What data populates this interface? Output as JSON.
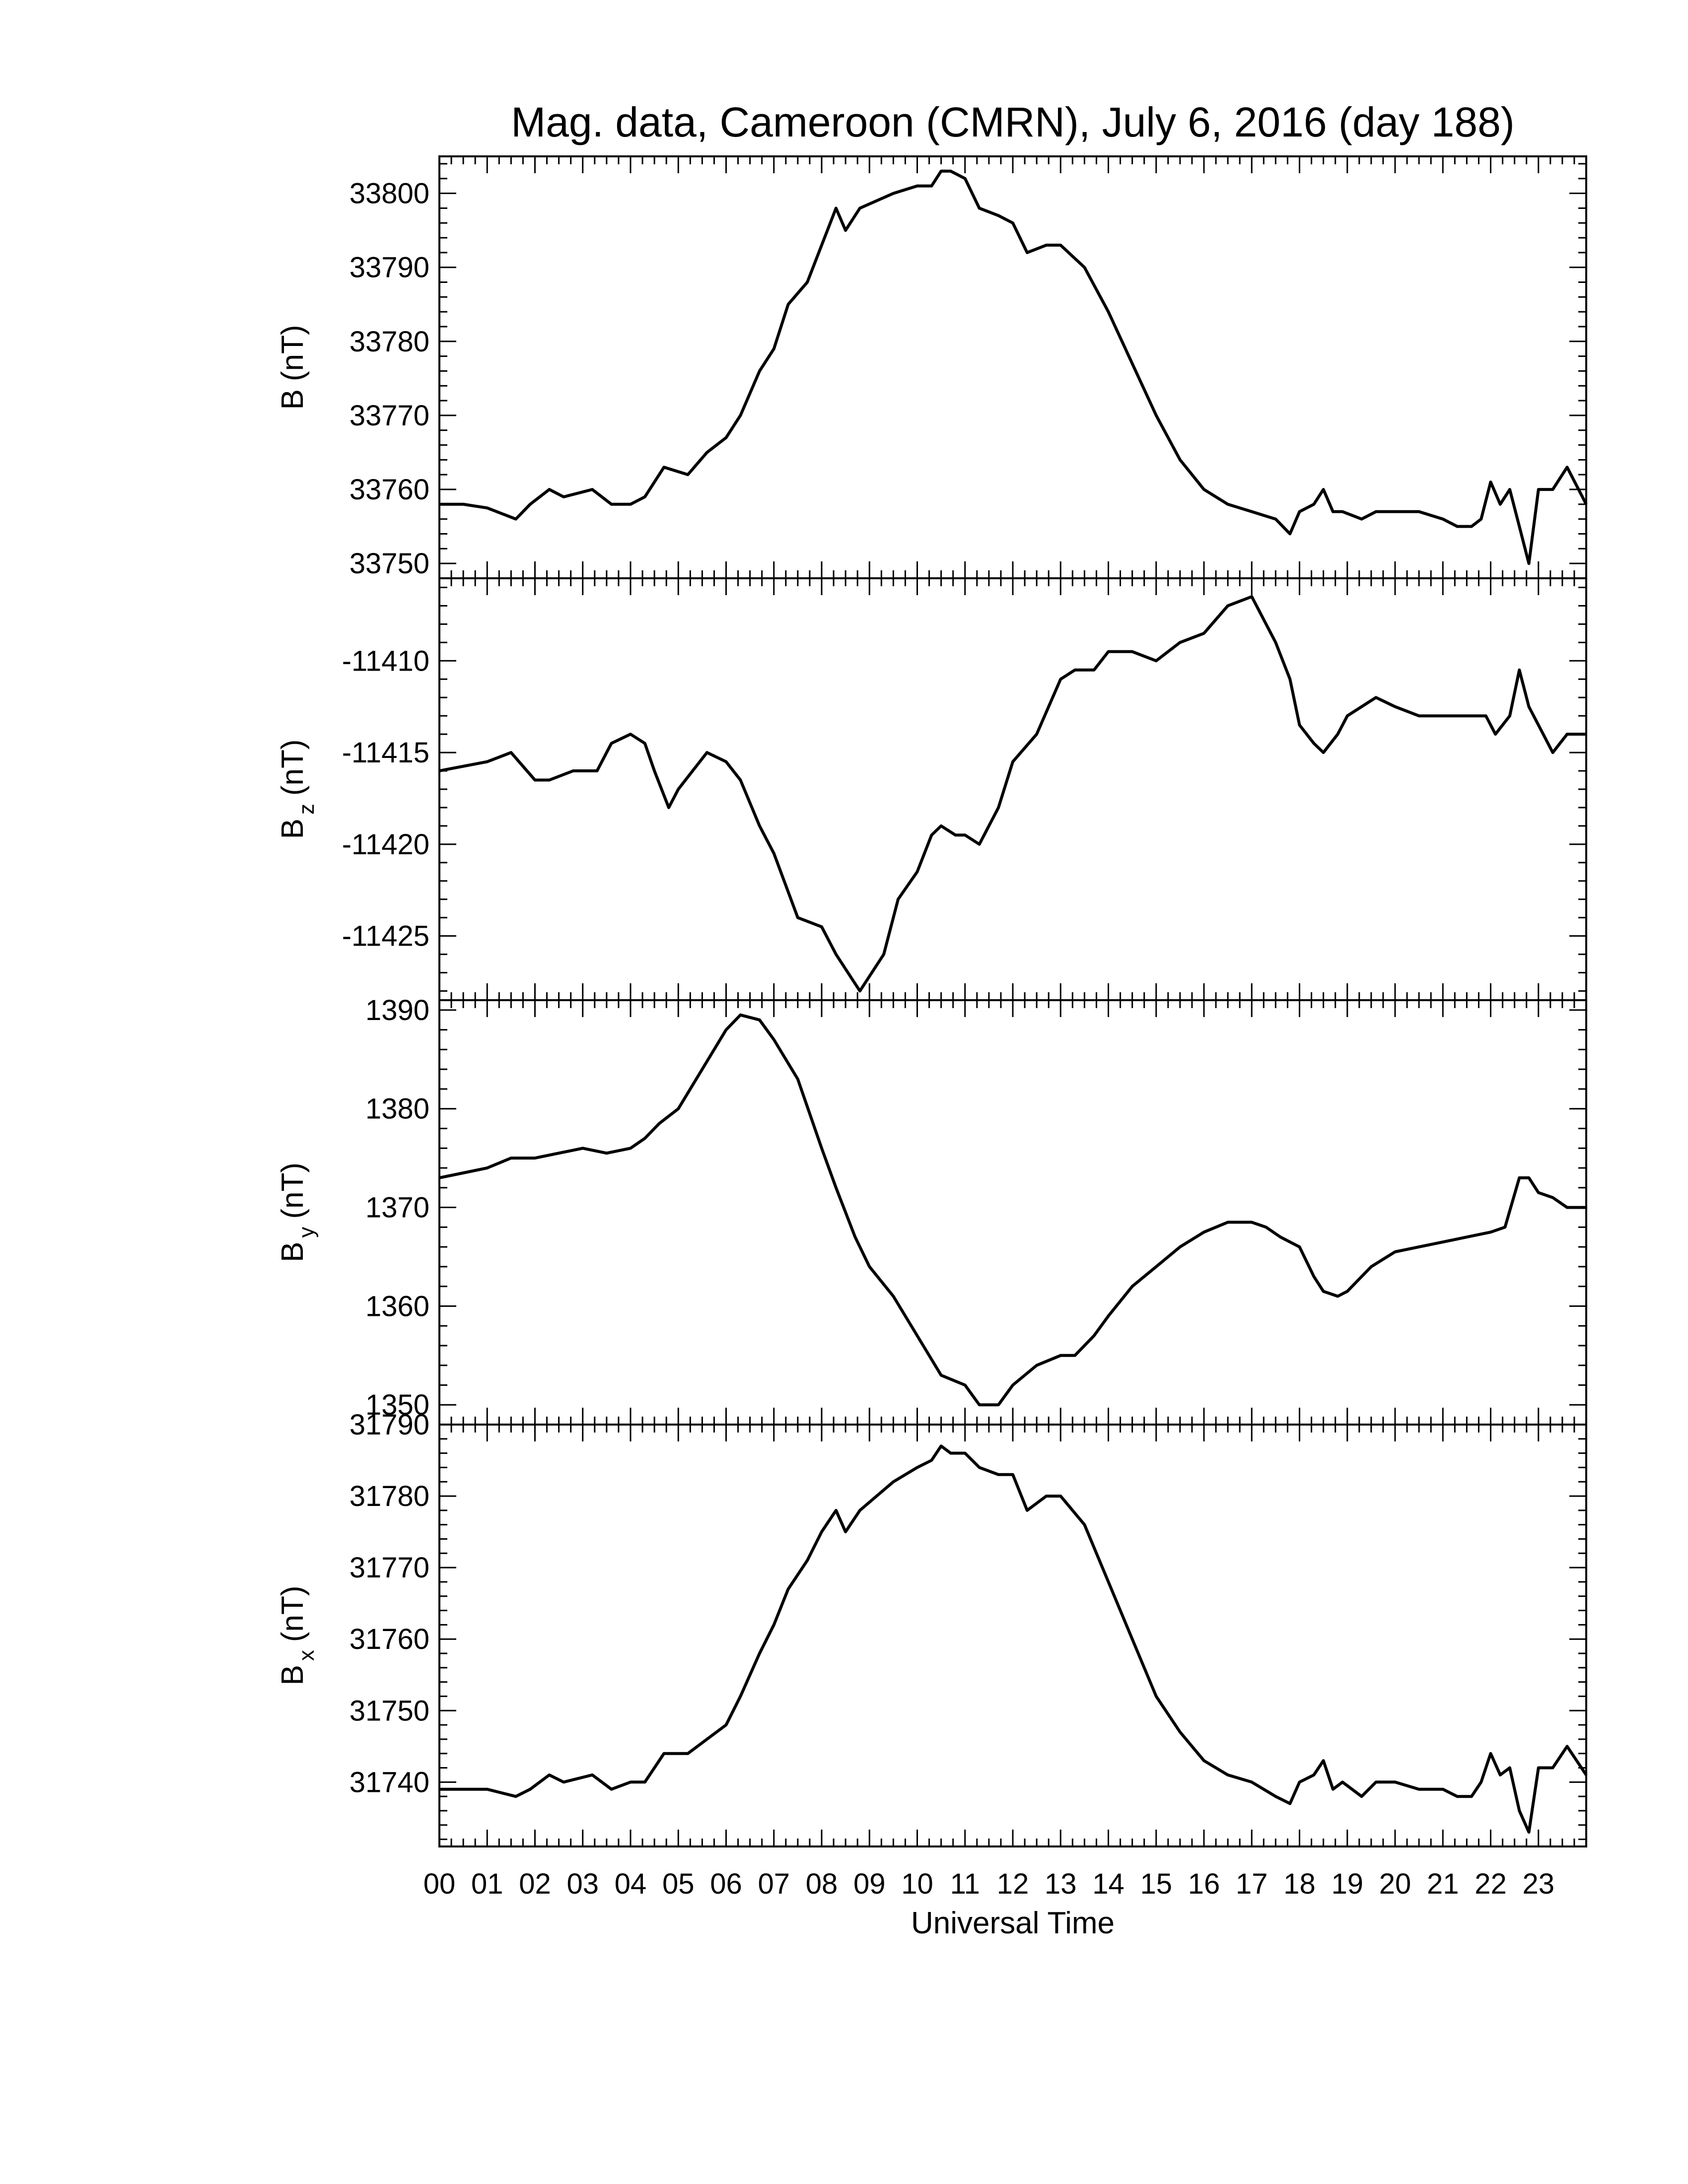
{
  "chart_data": {
    "type": "line",
    "title": "Mag. data, Cameroon (CMRN), July 6, 2016 (day 188)",
    "xlabel": "Universal Time",
    "xlim": [
      0,
      24
    ],
    "x_ticks": [
      "00",
      "01",
      "02",
      "03",
      "04",
      "05",
      "06",
      "07",
      "08",
      "09",
      "10",
      "11",
      "12",
      "13",
      "14",
      "15",
      "16",
      "17",
      "18",
      "19",
      "20",
      "21",
      "22",
      "23"
    ],
    "panels": [
      {
        "ylabel_main": "B",
        "ylabel_sub": "",
        "ylabel_unit": "(nT)",
        "ylim": [
          33748,
          33805
        ],
        "yticks": [
          33750,
          33760,
          33770,
          33780,
          33790,
          33800
        ],
        "x": [
          0,
          0.5,
          1.0,
          1.6,
          1.9,
          2.3,
          2.6,
          3.2,
          3.6,
          4.0,
          4.3,
          4.7,
          5.2,
          5.6,
          6.0,
          6.3,
          6.7,
          7.0,
          7.3,
          7.7,
          8.0,
          8.3,
          8.5,
          8.8,
          9.5,
          10.0,
          10.3,
          10.5,
          10.7,
          11.0,
          11.3,
          11.7,
          12.0,
          12.3,
          12.7,
          13.0,
          13.5,
          14.0,
          14.5,
          15.0,
          15.5,
          16.0,
          16.5,
          17.0,
          17.5,
          17.8,
          18.0,
          18.3,
          18.5,
          18.7,
          18.9,
          19.3,
          19.6,
          20.0,
          20.5,
          21.0,
          21.3,
          21.6,
          21.8,
          22.0,
          22.2,
          22.4,
          22.6,
          22.8,
          23.0,
          23.3,
          23.6,
          24.0
        ],
        "y": [
          33758,
          33758,
          33757.5,
          33756,
          33758,
          33760,
          33759,
          33760,
          33758,
          33758,
          33759,
          33763,
          33762,
          33765,
          33767,
          33770,
          33776,
          33779,
          33785,
          33788,
          33793,
          33798,
          33795,
          33798,
          33800,
          33801,
          33801,
          33803,
          33803,
          33802,
          33798,
          33797,
          33796,
          33792,
          33793,
          33793,
          33790,
          33784,
          33777,
          33770,
          33764,
          33760,
          33758,
          33757,
          33756,
          33754,
          33757,
          33758,
          33760,
          33757,
          33757,
          33756,
          33757,
          33757,
          33757,
          33756,
          33755,
          33755,
          33756,
          33761,
          33758,
          33760,
          33755,
          33750,
          33760,
          33760,
          33763,
          33758
        ]
      },
      {
        "ylabel_main": "B",
        "ylabel_sub": "z",
        "ylabel_unit": "(nT)",
        "ylim": [
          -11428.5,
          -11405.5
        ],
        "yticks": [
          -11425,
          -11420,
          -11415,
          -11410
        ],
        "x": [
          0,
          1.0,
          1.5,
          2.0,
          2.3,
          2.8,
          3.3,
          3.6,
          4.0,
          4.3,
          4.5,
          4.8,
          5.0,
          5.3,
          5.6,
          6.0,
          6.3,
          6.7,
          7.0,
          7.5,
          8.0,
          8.3,
          8.8,
          9.3,
          9.6,
          10.0,
          10.3,
          10.5,
          10.8,
          11.0,
          11.3,
          11.7,
          12.0,
          12.5,
          13.0,
          13.3,
          13.7,
          14.0,
          14.5,
          15.0,
          15.5,
          16.0,
          16.5,
          17.0,
          17.5,
          17.8,
          18.0,
          18.3,
          18.5,
          18.8,
          19.0,
          19.3,
          19.6,
          20.0,
          20.5,
          21.0,
          21.3,
          21.6,
          21.9,
          22.1,
          22.4,
          22.6,
          22.8,
          23.0,
          23.3,
          23.6,
          24.0
        ],
        "y": [
          -11416,
          -11415.5,
          -11415,
          -11416.5,
          -11416.5,
          -11416,
          -11416,
          -11414.5,
          -11414,
          -11414.5,
          -11416,
          -11418,
          -11417,
          -11416,
          -11415,
          -11415.5,
          -11416.5,
          -11419,
          -11420.5,
          -11424,
          -11424.5,
          -11426,
          -11428,
          -11426,
          -11423,
          -11421.5,
          -11419.5,
          -11419,
          -11419.5,
          -11419.5,
          -11420,
          -11418,
          -11415.5,
          -11414,
          -11411,
          -11410.5,
          -11410.5,
          -11409.5,
          -11409.5,
          -11410,
          -11409,
          -11408.5,
          -11407,
          -11406.5,
          -11409,
          -11411,
          -11413.5,
          -11414.5,
          -11415,
          -11414,
          -11413,
          -11412.5,
          -11412,
          -11412.5,
          -11413,
          -11413,
          -11413,
          -11413,
          -11413,
          -11414,
          -11413,
          -11410.5,
          -11412.5,
          -11413.5,
          -11415,
          -11414,
          -11414
        ]
      },
      {
        "ylabel_main": "B",
        "ylabel_sub": "y",
        "ylabel_unit": "(nT)",
        "ylim": [
          1348,
          1391
        ],
        "yticks": [
          1350,
          1360,
          1370,
          1380,
          1390
        ],
        "x": [
          0,
          0.5,
          1.0,
          1.5,
          2.0,
          2.5,
          3.0,
          3.5,
          4.0,
          4.3,
          4.6,
          5.0,
          5.5,
          6.0,
          6.3,
          6.7,
          7.0,
          7.5,
          8.0,
          8.3,
          8.7,
          9.0,
          9.5,
          10.0,
          10.5,
          11.0,
          11.3,
          11.7,
          12.0,
          12.5,
          13.0,
          13.3,
          13.7,
          14.0,
          14.5,
          15.0,
          15.5,
          16.0,
          16.5,
          17.0,
          17.3,
          17.6,
          18.0,
          18.3,
          18.5,
          18.8,
          19.0,
          19.5,
          20.0,
          20.5,
          21.0,
          21.5,
          22.0,
          22.3,
          22.6,
          22.8,
          23.0,
          23.3,
          23.6,
          24.0
        ],
        "y": [
          1373,
          1373.5,
          1374,
          1375,
          1375,
          1375.5,
          1376,
          1375.5,
          1376,
          1377,
          1378.5,
          1380,
          1384,
          1388,
          1389.5,
          1389,
          1387,
          1383,
          1376,
          1372,
          1367,
          1364,
          1361,
          1357,
          1353,
          1352,
          1350,
          1350,
          1352,
          1354,
          1355,
          1355,
          1357,
          1359,
          1362,
          1364,
          1366,
          1367.5,
          1368.5,
          1368.5,
          1368,
          1367,
          1366,
          1363,
          1361.5,
          1361,
          1361.5,
          1364,
          1365.5,
          1366,
          1366.5,
          1367,
          1367.5,
          1368,
          1373,
          1373,
          1371.5,
          1371,
          1370,
          1370
        ]
      },
      {
        "ylabel_main": "B",
        "ylabel_sub": "x",
        "ylabel_unit": "(nT)",
        "ylim": [
          31731,
          31790
        ],
        "yticks": [
          31740,
          31750,
          31760,
          31770,
          31780,
          31790
        ],
        "x": [
          0,
          0.5,
          1.0,
          1.6,
          1.9,
          2.3,
          2.6,
          3.2,
          3.6,
          4.0,
          4.3,
          4.7,
          5.2,
          5.6,
          6.0,
          6.3,
          6.7,
          7.0,
          7.3,
          7.7,
          8.0,
          8.3,
          8.5,
          8.8,
          9.5,
          10.0,
          10.3,
          10.5,
          10.7,
          11.0,
          11.3,
          11.7,
          12.0,
          12.3,
          12.7,
          13.0,
          13.5,
          14.0,
          14.5,
          15.0,
          15.5,
          16.0,
          16.5,
          17.0,
          17.5,
          17.8,
          18.0,
          18.3,
          18.5,
          18.7,
          18.9,
          19.3,
          19.6,
          20.0,
          20.5,
          21.0,
          21.3,
          21.6,
          21.8,
          22.0,
          22.2,
          22.4,
          22.6,
          22.8,
          23.0,
          23.3,
          23.6,
          24.0
        ],
        "y": [
          31739,
          31739,
          31739,
          31738,
          31739,
          31741,
          31740,
          31741,
          31739,
          31740,
          31740,
          31744,
          31744,
          31746,
          31748,
          31752,
          31758,
          31762,
          31767,
          31771,
          31775,
          31778,
          31775,
          31778,
          31782,
          31784,
          31785,
          31787,
          31786,
          31786,
          31784,
          31783,
          31783,
          31778,
          31780,
          31780,
          31776,
          31768,
          31760,
          31752,
          31747,
          31743,
          31741,
          31740,
          31738,
          31737,
          31740,
          31741,
          31743,
          31739,
          31740,
          31738,
          31740,
          31740,
          31739,
          31739,
          31738,
          31738,
          31740,
          31744,
          31741,
          31742,
          31736,
          31733,
          31742,
          31742,
          31745,
          31741
        ]
      }
    ]
  }
}
